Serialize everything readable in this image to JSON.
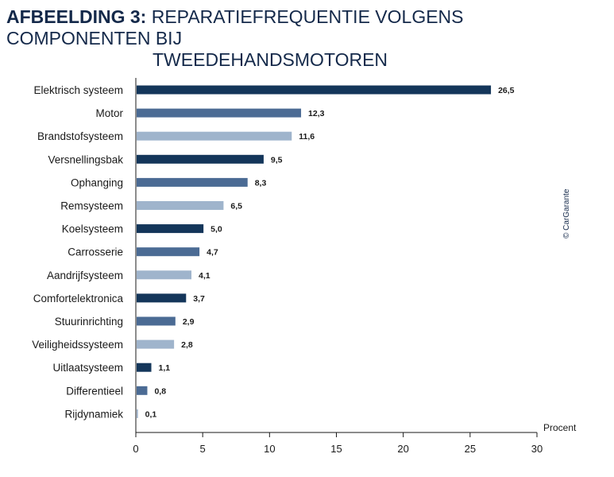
{
  "title": {
    "bold": "AFBEELDING 3:",
    "line1": "REPARATIEFREQUENTIE VOLGENS COMPONENTEN BIJ",
    "line2": "TWEEDEHANDSMOTOREN"
  },
  "copyright": "© CarGarante",
  "colors": {
    "dark": "#14365a",
    "medium": "#4b6b94",
    "light": "#9fb4cc"
  },
  "chart_data": {
    "type": "bar",
    "orientation": "horizontal",
    "categories": [
      "Elektrisch systeem",
      "Motor",
      "Brandstofsysteem",
      "Versnellingsbak",
      "Ophanging",
      "Remsysteem",
      "Koelsysteem",
      "Carrosserie",
      "Aandrijfsysteem",
      "Comfortelektronica",
      "Stuurinrichting",
      "Veiligheidssysteem",
      "Uitlaatsysteem",
      "Differentieel",
      "Rijdynamiek"
    ],
    "values": [
      26.5,
      12.3,
      11.6,
      9.5,
      8.3,
      6.5,
      5.0,
      4.7,
      4.1,
      3.7,
      2.9,
      2.8,
      1.1,
      0.8,
      0.1
    ],
    "value_labels": [
      "26,5",
      "12,3",
      "11,6",
      "9,5",
      "8,3",
      "6,5",
      "5,0",
      "4,7",
      "4,1",
      "3,7",
      "2,9",
      "2,8",
      "1,1",
      "0,8",
      "0,1"
    ],
    "xlim": [
      0,
      30
    ],
    "xticks": [
      0,
      5,
      10,
      15,
      20,
      25,
      30
    ],
    "xlabel": "Procent",
    "grid": false,
    "bar_color_cycle": [
      "dark",
      "medium",
      "light"
    ]
  }
}
